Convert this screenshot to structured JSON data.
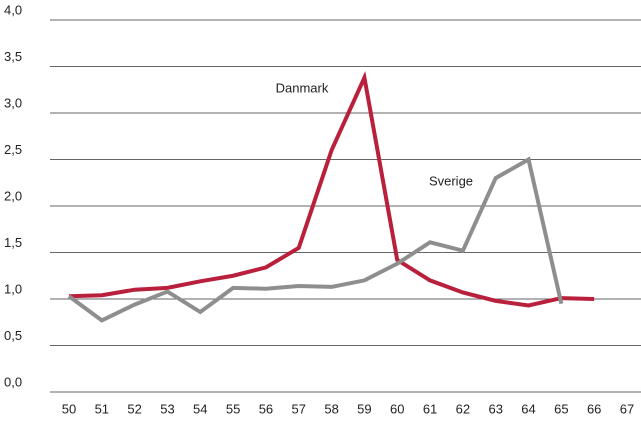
{
  "chart_data": {
    "type": "line",
    "categories": [
      "50",
      "51",
      "52",
      "53",
      "54",
      "55",
      "56",
      "57",
      "58",
      "59",
      "60",
      "61",
      "62",
      "63",
      "64",
      "65",
      "66",
      "67"
    ],
    "series": [
      {
        "name": "Danmark",
        "color": "#b8203c",
        "values": [
          1.03,
          1.04,
          1.1,
          1.12,
          1.19,
          1.25,
          1.34,
          1.55,
          2.6,
          3.38,
          1.42,
          1.2,
          1.07,
          0.98,
          0.93,
          1.01,
          1.0,
          null
        ]
      },
      {
        "name": "Sverige",
        "color": "#8e8e8e",
        "values": [
          1.03,
          0.77,
          0.94,
          1.08,
          0.86,
          1.12,
          1.11,
          1.14,
          1.13,
          1.2,
          1.38,
          1.61,
          1.52,
          2.3,
          2.5,
          0.95,
          null,
          null
        ]
      }
    ],
    "ylim": [
      0,
      4
    ],
    "yticks": [
      {
        "value": 0,
        "label": "0,0"
      },
      {
        "value": 0.5,
        "label": "0,5"
      },
      {
        "value": 1,
        "label": "1,0"
      },
      {
        "value": 1.5,
        "label": "1,5"
      },
      {
        "value": 2,
        "label": "2,0"
      },
      {
        "value": 2.5,
        "label": "2,5"
      },
      {
        "value": 3,
        "label": "3,0"
      },
      {
        "value": 3.5,
        "label": "3,5"
      },
      {
        "value": 4,
        "label": "4,0"
      }
    ],
    "grid": true
  }
}
